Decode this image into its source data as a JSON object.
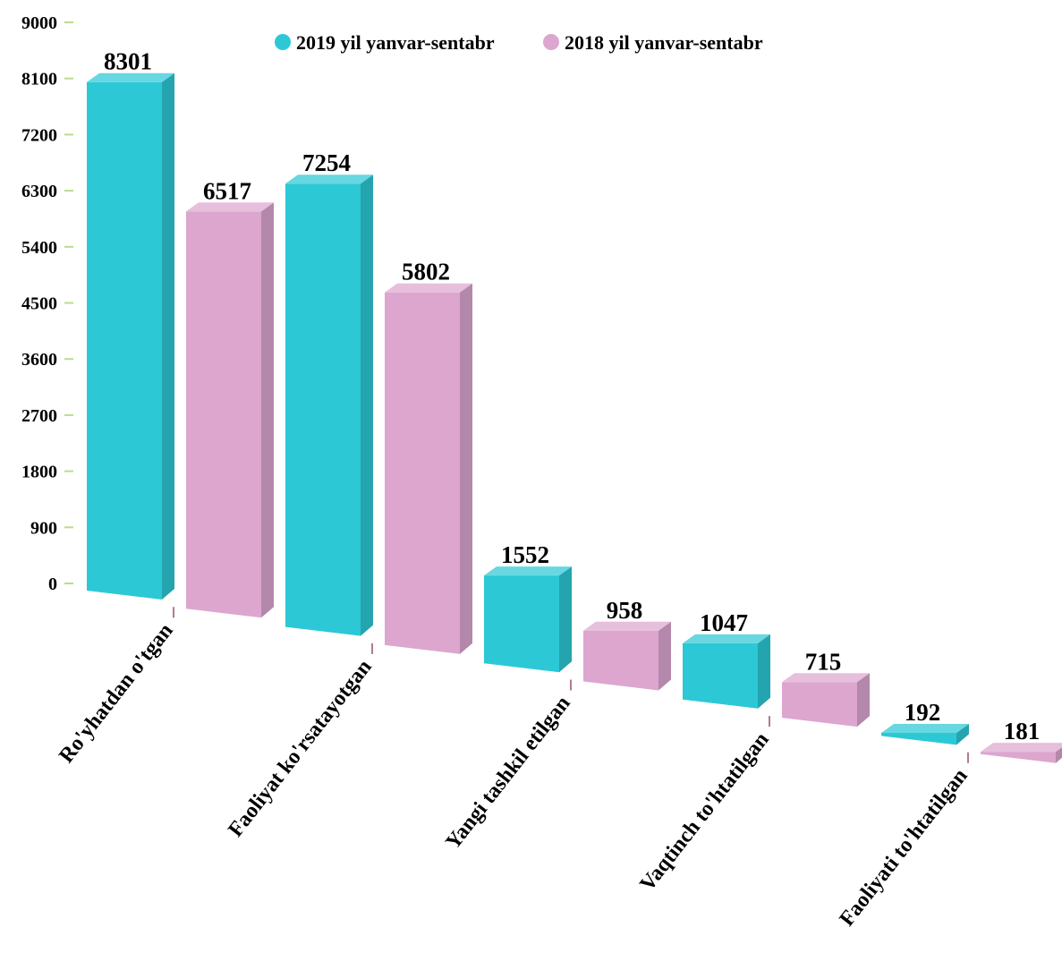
{
  "chart_data": {
    "type": "bar",
    "title": "",
    "xlabel": "",
    "ylabel": "",
    "ylim": [
      0,
      9000
    ],
    "yticks": [
      "9000",
      "8100",
      "7200",
      "6300",
      "5400",
      "4500",
      "3600",
      "2700",
      "1800",
      "900",
      "0"
    ],
    "grid": false,
    "legend_position": "top",
    "categories": [
      "Ro'yhatdan o'tgan",
      "Faoliyat ko'rsatayotgan",
      "Yangi tashkil etilgan",
      "Vaqtinch to'htatilgan",
      "Faoliyati to'htatilgan"
    ],
    "series": [
      {
        "name": "2019 yil yanvar-sentabr",
        "values": [
          8301,
          7254,
          1552,
          1047,
          192
        ],
        "labels": [
          "8301",
          "7254",
          "1552",
          "1047",
          "192"
        ],
        "color": "#2cc8d6"
      },
      {
        "name": "2018 yil yanvar-sentabr",
        "values": [
          6517,
          5802,
          958,
          715,
          181
        ],
        "labels": [
          "6517",
          "5802",
          "958",
          "715",
          "181"
        ],
        "color": "#dca6cf"
      }
    ]
  }
}
